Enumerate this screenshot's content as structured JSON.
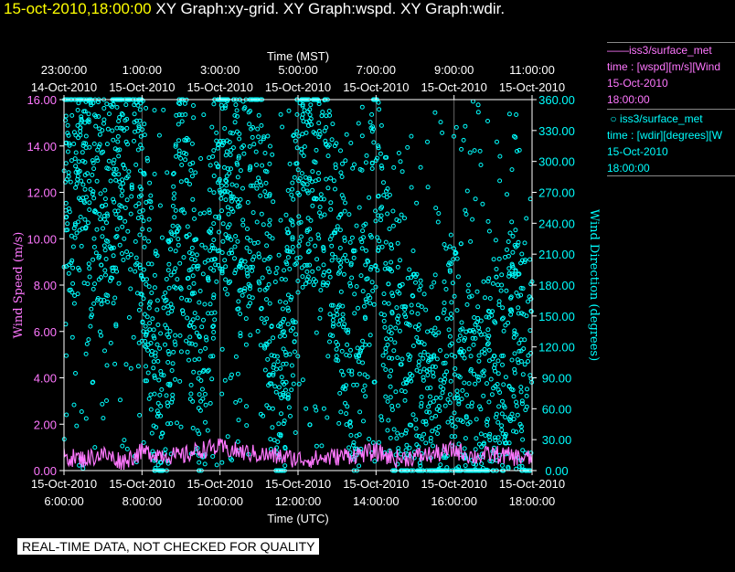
{
  "title": {
    "time_stamp": "15-oct-2010,18:00:00",
    "graphs": "XY Graph:xy-grid.  XY Graph:wspd.  XY Graph:wdir."
  },
  "legend": {
    "wspd": {
      "line1": "iss3/surface_met",
      "line2": "time : [wspd][m/s][Wind",
      "line3": "15-Oct-2010",
      "line4": "18:00:00"
    },
    "wdir": {
      "line1": "iss3/surface_met",
      "line2": "time : [wdir][degrees][W",
      "line3": "15-Oct-2010",
      "line4": "18:00:00"
    }
  },
  "quality_banner": "REAL-TIME DATA, NOT CHECKED FOR QUALITY",
  "colors": {
    "wspd": "#ff77ff",
    "wdir": "#00ffff",
    "title_time": "#ffff00",
    "axis": "#ffffff",
    "background": "#000000"
  },
  "chart_data": {
    "type": "scatter",
    "top_axis": {
      "label": "Time (MST)",
      "ticks": [
        {
          "time": "23:00:00",
          "date": "14-Oct-2010"
        },
        {
          "time": "1:00:00",
          "date": "15-Oct-2010"
        },
        {
          "time": "3:00:00",
          "date": "15-Oct-2010"
        },
        {
          "time": "5:00:00",
          "date": "15-Oct-2010"
        },
        {
          "time": "7:00:00",
          "date": "15-Oct-2010"
        },
        {
          "time": "9:00:00",
          "date": "15-Oct-2010"
        },
        {
          "time": "11:00:00",
          "date": "15-Oct-2010"
        }
      ]
    },
    "bottom_axis": {
      "label": "Time (UTC)",
      "range": [
        "2010-10-15 06:00:00",
        "2010-10-15 18:00:00"
      ],
      "ticks": [
        {
          "date": "15-Oct-2010",
          "time": "6:00:00"
        },
        {
          "date": "15-Oct-2010",
          "time": "8:00:00"
        },
        {
          "date": "15-Oct-2010",
          "time": "10:00:00"
        },
        {
          "date": "15-Oct-2010",
          "time": "12:00:00"
        },
        {
          "date": "15-Oct-2010",
          "time": "14:00:00"
        },
        {
          "date": "15-Oct-2010",
          "time": "16:00:00"
        },
        {
          "date": "15-Oct-2010",
          "time": "18:00:00"
        }
      ]
    },
    "left_axis": {
      "label": "Wind Speed (m/s)",
      "ylim": [
        0,
        16
      ],
      "ticks": [
        "0.00",
        "2.00",
        "4.00",
        "6.00",
        "8.00",
        "10.00",
        "12.00",
        "14.00",
        "16.00"
      ]
    },
    "right_axis": {
      "label": "Wind Direction (degrees)",
      "ylim": [
        0,
        360
      ],
      "ticks": [
        "0.00",
        "30.00",
        "60.00",
        "90.00",
        "120.00",
        "150.00",
        "180.00",
        "210.00",
        "240.00",
        "270.00",
        "300.00",
        "330.00",
        "360.00"
      ]
    },
    "grid": true,
    "series": [
      {
        "name": "iss3/surface_met wspd",
        "axis": "left",
        "style": "line",
        "color": "#ff77ff",
        "x_hours_utc": [
          6.0,
          6.5,
          7.0,
          7.5,
          8.0,
          8.5,
          9.0,
          9.5,
          10.0,
          10.5,
          11.0,
          11.5,
          12.0,
          12.5,
          13.0,
          13.5,
          14.0,
          14.5,
          15.0,
          15.5,
          16.0,
          16.5,
          17.0,
          17.5,
          18.0
        ],
        "values": [
          0.6,
          0.5,
          0.7,
          0.4,
          0.8,
          0.7,
          0.6,
          0.9,
          1.0,
          0.8,
          0.7,
          0.6,
          0.5,
          0.5,
          0.6,
          0.7,
          0.8,
          0.5,
          0.6,
          0.7,
          0.9,
          0.6,
          0.7,
          0.6,
          0.5
        ]
      },
      {
        "name": "iss3/surface_met wdir",
        "axis": "right",
        "style": "points",
        "color": "#00ffff",
        "x_hours_utc": [
          6.0,
          6.5,
          7.0,
          7.5,
          8.0,
          8.5,
          9.0,
          9.5,
          10.0,
          10.5,
          11.0,
          11.5,
          12.0,
          12.5,
          13.0,
          13.5,
          14.0,
          14.5,
          15.0,
          15.5,
          16.0,
          16.5,
          17.0,
          17.5,
          18.0
        ],
        "values": [
          300,
          280,
          250,
          310,
          270,
          20,
          290,
          60,
          320,
          260,
          300,
          40,
          280,
          310,
          200,
          90,
          300,
          60,
          80,
          30,
          100,
          50,
          70,
          120,
          90
        ]
      }
    ]
  }
}
